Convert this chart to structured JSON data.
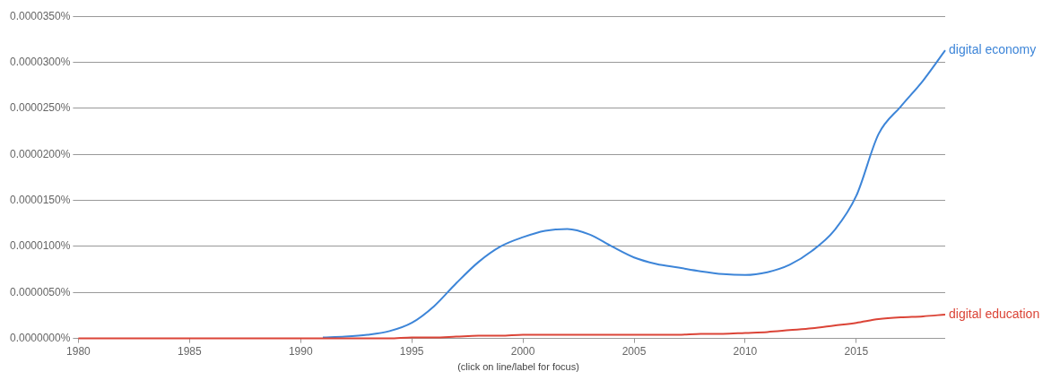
{
  "chart_data": {
    "type": "line",
    "xlim": [
      1980,
      2019
    ],
    "xticks": [
      1980,
      1985,
      1990,
      1995,
      2000,
      2005,
      2010,
      2015
    ],
    "ylim": [
      0,
      3.5e-05
    ],
    "yticks": [
      {
        "value": 0,
        "label": "0.0000000%"
      },
      {
        "value": 5e-06,
        "label": "0.0000050%"
      },
      {
        "value": 1e-05,
        "label": "0.0000100%"
      },
      {
        "value": 1.5e-05,
        "label": "0.0000150%"
      },
      {
        "value": 2e-05,
        "label": "0.0000200%"
      },
      {
        "value": 2.5e-05,
        "label": "0.0000250%"
      },
      {
        "value": 3e-05,
        "label": "0.0000300%"
      },
      {
        "value": 3.5e-05,
        "label": "0.0000350%"
      }
    ],
    "x": [
      1980,
      1982,
      1984,
      1986,
      1988,
      1990,
      1991,
      1992,
      1993,
      1994,
      1995,
      1996,
      1997,
      1998,
      1999,
      2000,
      2001,
      2002,
      2003,
      2004,
      2005,
      2006,
      2007,
      2008,
      2009,
      2010,
      2011,
      2012,
      2013,
      2014,
      2015,
      2016,
      2017,
      2018,
      2019
    ],
    "series": [
      {
        "name": "digital economy",
        "color": "#3d85d8",
        "values": [
          null,
          null,
          null,
          null,
          null,
          null,
          1e-07,
          2e-07,
          4e-07,
          8e-07,
          1.7e-06,
          3.5e-06,
          6e-06,
          8.3e-06,
          1e-05,
          1.1e-05,
          1.17e-05,
          1.19e-05,
          1.13e-05,
          1e-05,
          8.8e-06,
          8.1e-06,
          7.7e-06,
          7.3e-06,
          7e-06,
          6.9e-06,
          7.2e-06,
          8e-06,
          9.5e-06,
          1.17e-05,
          1.55e-05,
          2.22e-05,
          2.52e-05,
          2.8e-05,
          3.13e-05
        ]
      },
      {
        "name": "digital education",
        "color": "#db4437",
        "values": [
          0,
          0,
          0,
          0,
          0,
          0,
          0,
          0,
          0,
          0,
          1e-07,
          1e-07,
          2e-07,
          3e-07,
          3e-07,
          4e-07,
          4e-07,
          4e-07,
          4e-07,
          4e-07,
          4e-07,
          4e-07,
          4e-07,
          5e-07,
          5e-07,
          6e-07,
          7e-07,
          9e-07,
          1.1e-06,
          1.4e-06,
          1.7e-06,
          2.1e-06,
          2.3e-06,
          2.4e-06,
          2.6e-06
        ]
      }
    ],
    "grid": "y",
    "legend": false,
    "annotations": [
      "(click on line/label for focus)"
    ]
  }
}
